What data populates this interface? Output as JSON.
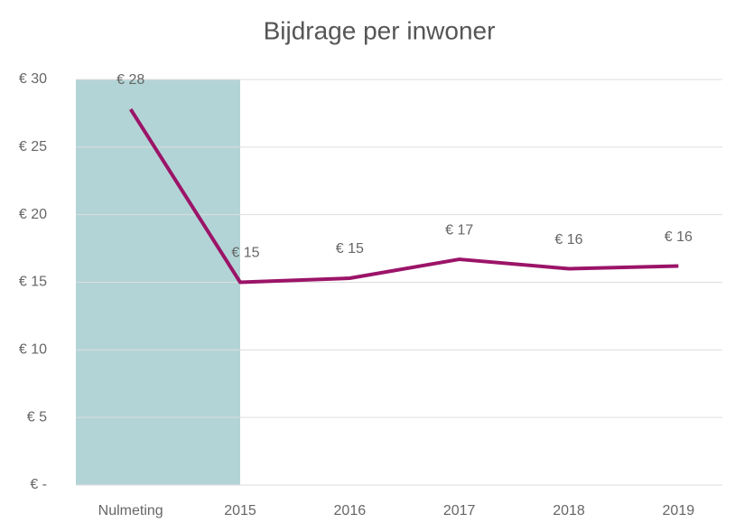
{
  "chart_data": {
    "type": "line",
    "title": "Bijdrage per inwoner",
    "categories": [
      "Nulmeting",
      "2015",
      "2016",
      "2017",
      "2018",
      "2019"
    ],
    "values": [
      27.8,
      15.0,
      15.3,
      16.7,
      16.0,
      16.2
    ],
    "value_labels": [
      "€ 28",
      "€ 15",
      "€ 15",
      "€ 17",
      "€ 16",
      "€ 16"
    ],
    "color": "#9b1468",
    "highlight_color": "#b3d4d6",
    "ylim": [
      0,
      30
    ],
    "yticks": [
      {
        "value": 0,
        "label": "€ -"
      },
      {
        "value": 5,
        "label": "€ 5"
      },
      {
        "value": 10,
        "label": "€ 10"
      },
      {
        "value": 15,
        "label": "€ 15"
      },
      {
        "value": 20,
        "label": "€ 20"
      },
      {
        "value": 25,
        "label": "€ 25"
      },
      {
        "value": 30,
        "label": "€ 30"
      }
    ],
    "grid": true
  }
}
